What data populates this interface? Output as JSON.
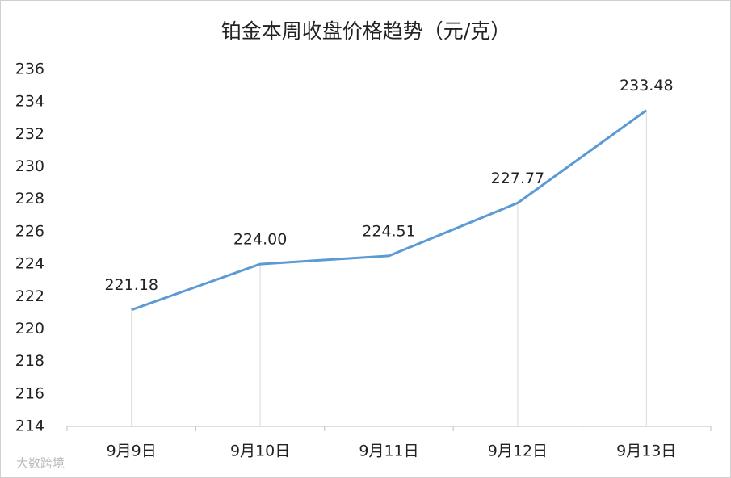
{
  "chart_data": {
    "type": "line",
    "title": "铂金本周收盘价格趋势（元/克）",
    "categories": [
      "9月9日",
      "9月10日",
      "9月11日",
      "9月12日",
      "9月13日"
    ],
    "values": [
      221.18,
      224,
      224.51,
      227.77,
      233.48
    ],
    "value_labels": [
      "221.18",
      "224.00",
      "224.51",
      "227.77",
      "233.48"
    ],
    "color": "#5b9bd5",
    "ylim": [
      214,
      236
    ],
    "yticks": [
      214,
      216,
      218,
      220,
      222,
      224,
      226,
      228,
      230,
      232,
      234,
      236
    ],
    "drop_lines": true,
    "grid": false,
    "watermark": "大数跨境"
  }
}
